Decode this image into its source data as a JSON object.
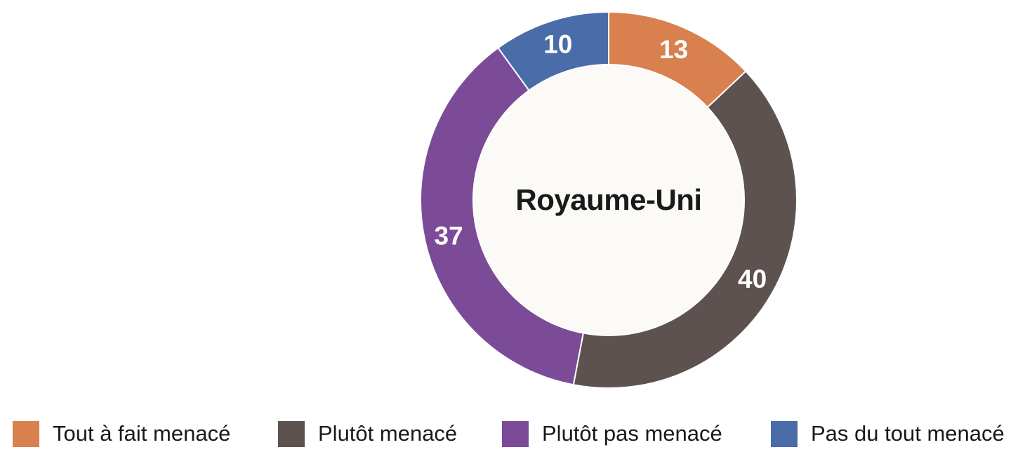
{
  "chart_data": {
    "type": "pie",
    "subtype": "donut",
    "center_label": "Royaume-Uni",
    "direction": "clockwise",
    "start_angle_deg": 0,
    "inner_radius_ratio": 0.72,
    "hole_fill": "#fbfaf7",
    "value_label_color": "#ffffff",
    "segments": [
      {
        "label": "Tout à fait menacé",
        "value": 13,
        "color": "#d8804e"
      },
      {
        "label": "Plutôt menacé",
        "value": 40,
        "color": "#5d5250"
      },
      {
        "label": "Plutôt pas menacé",
        "value": 37,
        "color": "#7c4b98"
      },
      {
        "label": "Pas du tout menacé",
        "value": 10,
        "color": "#4a6ca8"
      }
    ],
    "legend_position": "bottom",
    "total": 100
  }
}
